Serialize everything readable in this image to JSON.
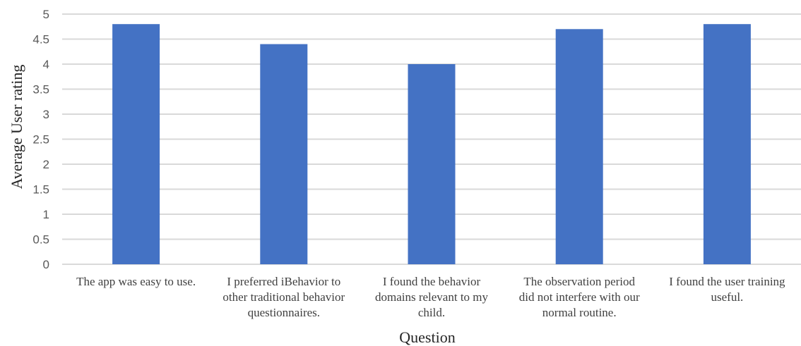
{
  "chart_data": {
    "type": "bar",
    "categories": [
      [
        "The app was easy to use."
      ],
      [
        "I preferred iBehavior to",
        "other traditional behavior",
        "questionnaires."
      ],
      [
        "I found the behavior",
        "domains relevant to my",
        "child."
      ],
      [
        "The observation period",
        "did not interfere with our",
        "normal routine."
      ],
      [
        "I found the user training",
        "useful."
      ]
    ],
    "values": [
      4.8,
      4.4,
      4.0,
      4.7,
      4.8
    ],
    "xlabel": "Question",
    "ylabel": "Average User rating",
    "ylim": [
      0,
      5
    ],
    "yticks": [
      0,
      0.5,
      1,
      1.5,
      2,
      2.5,
      3,
      3.5,
      4,
      4.5,
      5
    ],
    "grid": true,
    "legend": "none",
    "bar_color": "#4472c4",
    "grid_color": "#d9d9d9"
  }
}
